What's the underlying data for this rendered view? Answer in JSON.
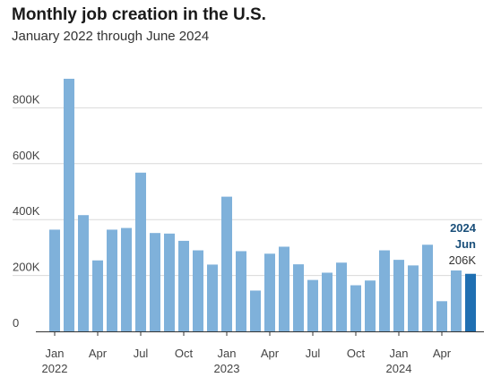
{
  "chart_data": {
    "type": "bar",
    "title": "Monthly job creation in the U.S.",
    "subtitle": "January 2022 through June 2024",
    "ylim": [
      0,
      1000000
    ],
    "y_ticks": [
      {
        "value": 0,
        "label": "0"
      },
      {
        "value": 200000,
        "label": "200K"
      },
      {
        "value": 400000,
        "label": "400K"
      },
      {
        "value": 600000,
        "label": "600K"
      },
      {
        "value": 800000,
        "label": "800K"
      }
    ],
    "categories": [
      "2022-01",
      "2022-02",
      "2022-03",
      "2022-04",
      "2022-05",
      "2022-06",
      "2022-07",
      "2022-08",
      "2022-09",
      "2022-10",
      "2022-11",
      "2022-12",
      "2023-01",
      "2023-02",
      "2023-03",
      "2023-04",
      "2023-05",
      "2023-06",
      "2023-07",
      "2023-08",
      "2023-09",
      "2023-10",
      "2023-11",
      "2023-12",
      "2024-01",
      "2024-02",
      "2024-03",
      "2024-04",
      "2024-05",
      "2024-06"
    ],
    "values": [
      364000,
      904000,
      416000,
      254000,
      364000,
      370000,
      568000,
      352000,
      350000,
      324000,
      290000,
      239000,
      482000,
      287000,
      146000,
      278000,
      303000,
      240000,
      184000,
      210000,
      246000,
      165000,
      182000,
      290000,
      256000,
      236000,
      310000,
      108000,
      218000,
      206000
    ],
    "x_ticks": [
      {
        "index": 0,
        "label": "Jan",
        "year": "2022"
      },
      {
        "index": 3,
        "label": "Apr"
      },
      {
        "index": 6,
        "label": "Jul"
      },
      {
        "index": 9,
        "label": "Oct"
      },
      {
        "index": 12,
        "label": "Jan",
        "year": "2023"
      },
      {
        "index": 15,
        "label": "Apr"
      },
      {
        "index": 18,
        "label": "Jul"
      },
      {
        "index": 21,
        "label": "Oct"
      },
      {
        "index": 24,
        "label": "Jan",
        "year": "2024"
      },
      {
        "index": 27,
        "label": "Apr"
      }
    ],
    "annotation": {
      "index": 29,
      "year": "2024",
      "month": "Jun",
      "value_label": "206K"
    },
    "bar_color": "#7fb1da",
    "highlight_color": "#1f6fb2",
    "grid": true
  }
}
